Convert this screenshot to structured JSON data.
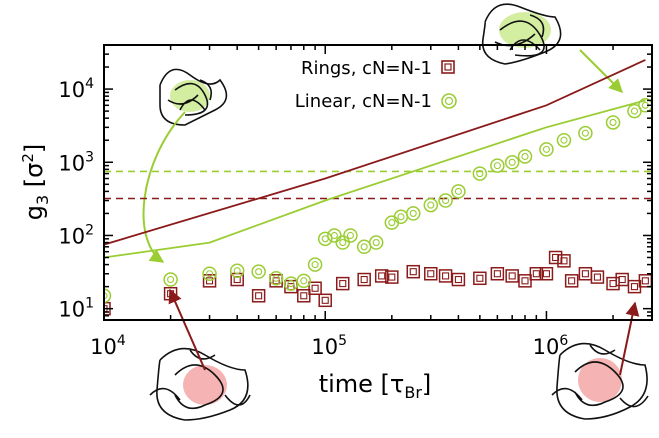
{
  "chart_data": {
    "type": "scatter",
    "title": "",
    "xlabel": "time [τ",
    "xlabel_sub": "Br",
    "xlabel_close": "]",
    "ylabel": "g",
    "ylabel_sub": "3",
    "ylabel_open": " [σ",
    "ylabel_sup": "2",
    "ylabel_close": "]",
    "xscale": "log",
    "yscale": "log",
    "xlim": [
      10000,
      3000000
    ],
    "ylim": [
      7,
      40000
    ],
    "x_ticks": [
      {
        "base": "10",
        "exp": "4",
        "value": 10000
      },
      {
        "base": "10",
        "exp": "5",
        "value": 100000
      },
      {
        "base": "10",
        "exp": "6",
        "value": 1000000
      }
    ],
    "y_ticks": [
      {
        "base": "10",
        "exp": "1",
        "value": 10
      },
      {
        "base": "10",
        "exp": "2",
        "value": 100
      },
      {
        "base": "10",
        "exp": "3",
        "value": 1000
      },
      {
        "base": "10",
        "exp": "4",
        "value": 10000
      }
    ],
    "legend_position": "top-right",
    "colors": {
      "rings": "#8b1a1a",
      "linear": "#9acd32"
    },
    "series": [
      {
        "name": "Rings, cN=N-1",
        "marker": "open-square",
        "x": [
          10000,
          20000,
          30000,
          40000,
          50000,
          60000,
          70000,
          80000,
          90000,
          100000,
          120000,
          150000,
          180000,
          200000,
          250000,
          300000,
          350000,
          400000,
          500000,
          600000,
          700000,
          800000,
          900000,
          1000000,
          1100000,
          1200000,
          1300000,
          1500000,
          1700000,
          2000000,
          2200000,
          2500000,
          2800000
        ],
        "y": [
          10,
          16,
          24,
          25,
          15,
          24,
          20,
          15,
          19,
          13,
          22,
          25,
          28,
          27,
          32,
          30,
          28,
          25,
          26,
          30,
          28,
          24,
          30,
          30,
          50,
          45,
          24,
          30,
          27,
          22,
          25,
          20,
          24
        ]
      },
      {
        "name": "Linear, cN=N-1",
        "marker": "open-circle",
        "x": [
          10000,
          20000,
          30000,
          40000,
          50000,
          60000,
          70000,
          80000,
          90000,
          100000,
          110000,
          120000,
          130000,
          150000,
          170000,
          200000,
          220000,
          250000,
          300000,
          350000,
          400000,
          500000,
          600000,
          700000,
          800000,
          1000000,
          1200000,
          1500000,
          2000000,
          2500000,
          2800000
        ],
        "y": [
          15,
          25,
          30,
          33,
          32,
          26,
          22,
          24,
          40,
          90,
          100,
          80,
          100,
          70,
          80,
          150,
          180,
          200,
          260,
          300,
          400,
          700,
          900,
          1000,
          1200,
          1500,
          2000,
          2500,
          3500,
          5000,
          6000
        ]
      }
    ],
    "curves": [
      {
        "name": "rings-upper-curve",
        "color": "#8b1a1a",
        "x": [
          10000,
          100000,
          1000000,
          2800000
        ],
        "y": [
          75,
          600,
          6000,
          25000
        ]
      },
      {
        "name": "linear-upper-curve",
        "color": "#9acd32",
        "x": [
          10000,
          30000,
          100000,
          1000000,
          2800000
        ],
        "y": [
          50,
          80,
          300,
          3000,
          7000
        ]
      }
    ],
    "reference_lines": [
      {
        "name": "linear-reference-line",
        "color": "#9acd32",
        "y": 750
      },
      {
        "name": "rings-reference-line",
        "color": "#8b1a1a",
        "y": 320
      }
    ]
  }
}
